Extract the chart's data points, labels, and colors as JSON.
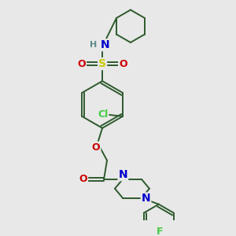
{
  "bg_color": "#e8e8e8",
  "atom_colors": {
    "C": "#2d5a2d",
    "N": "#0000cc",
    "O": "#cc0000",
    "S": "#cccc00",
    "Cl": "#44cc44",
    "F": "#44cc44",
    "H": "#5a8a8a"
  },
  "bond_color": "#2d5a2d",
  "bond_width": 1.4,
  "dbo": 0.055,
  "font_size": 9
}
